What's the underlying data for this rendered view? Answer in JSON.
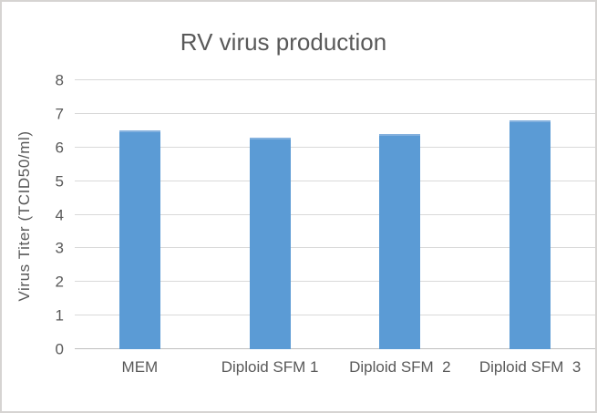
{
  "chart_data": {
    "type": "bar",
    "title": "RV virus production",
    "ylabel": "Virus Titer (TCID50/ml)",
    "xlabel": "",
    "categories": [
      "MEM",
      "Diploid SFM 1",
      "Diploid SFM  2",
      "Diploid SFM  3"
    ],
    "values": [
      6.5,
      6.3,
      6.4,
      6.8
    ],
    "ylim": [
      0,
      8
    ],
    "ytick_step": 1,
    "ytick_labels": [
      "0",
      "1",
      "2",
      "3",
      "4",
      "5",
      "6",
      "7",
      "8"
    ],
    "grid": true,
    "legend": "none",
    "colors": {
      "bar": "#5B9BD5",
      "bar_top_edge": "#84B1DE",
      "text": "#595959",
      "gridline": "#D9D9D9",
      "axis_line": "#BFBFBF",
      "frame_border": "#D6D4D2",
      "background": "#FFFFFF"
    }
  }
}
